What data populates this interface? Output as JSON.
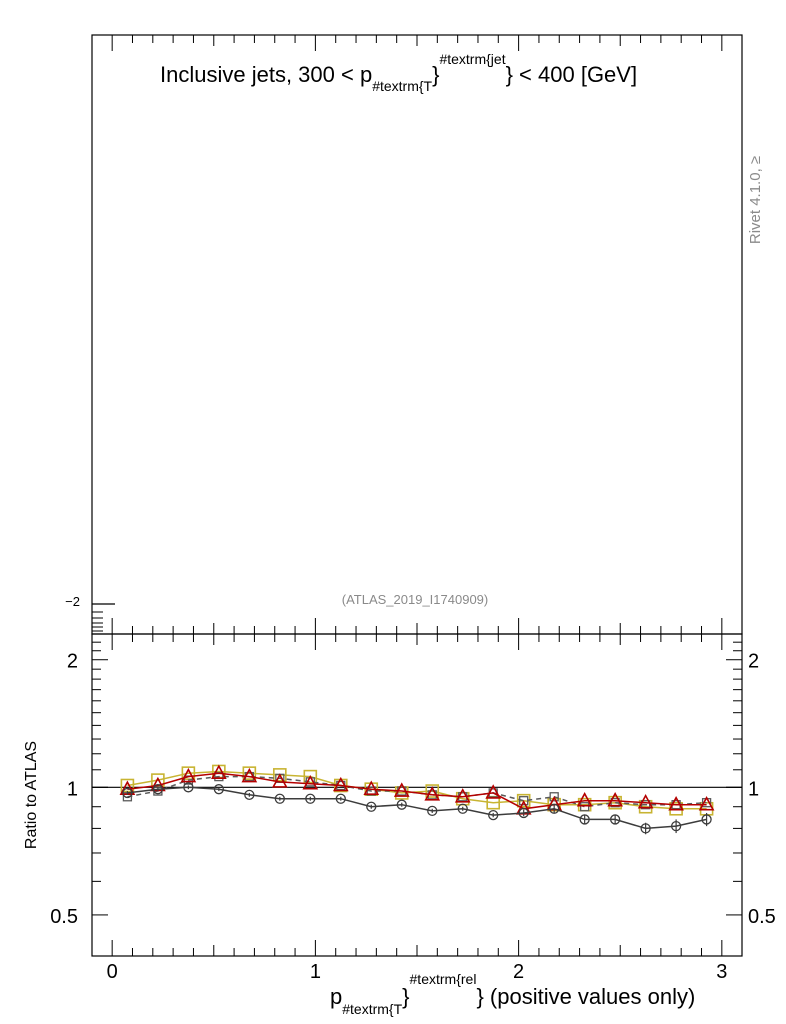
{
  "upper_panel": {
    "title_main": "Inclusive jets, 300 < p",
    "title_sub": "#textrm{T",
    "title_sup": "#textrm{jet",
    "title_tail": "} < 400 [GeV]",
    "ytick_label": "−2",
    "watermark": "(ATLAS_2019_I1740909)",
    "side_label": "Rivet 4.1.0, ≥"
  },
  "chart_data": {
    "type": "line",
    "xlabel_main": "p",
    "xlabel_sub": "#textrm{T",
    "xlabel_sup": "#textrm{rel",
    "xlabel_tail": "} (positive values only)",
    "ylabel": "Ratio to ATLAS",
    "xlim": [
      -0.05,
      3.05
    ],
    "ylim": [
      0.4,
      2.3
    ],
    "yscale": "log",
    "xticks": [
      0,
      1,
      2,
      3
    ],
    "xtick_labels": [
      "0",
      "1",
      "2",
      "3"
    ],
    "yticks": [
      0.5,
      1,
      2
    ],
    "ytick_labels": [
      "0.5",
      "1",
      "2"
    ],
    "reference_line": 1,
    "x": [
      0.075,
      0.225,
      0.375,
      0.525,
      0.675,
      0.825,
      0.975,
      1.125,
      1.275,
      1.425,
      1.575,
      1.725,
      1.875,
      2.025,
      2.175,
      2.325,
      2.475,
      2.625,
      2.775,
      2.925
    ],
    "series": [
      {
        "color": "#c8b432",
        "line_style": "solid",
        "marker": "square-large",
        "values": [
          1.01,
          1.04,
          1.08,
          1.09,
          1.08,
          1.07,
          1.06,
          1.01,
          0.99,
          0.97,
          0.98,
          0.94,
          0.92,
          0.93,
          0.91,
          0.91,
          0.92,
          0.9,
          0.89,
          0.89
        ]
      },
      {
        "color": "#5a5a5a",
        "line_style": "dashed",
        "marker": "square-small",
        "values": [
          0.95,
          0.98,
          1.04,
          1.06,
          1.06,
          1.05,
          1.03,
          1.01,
          0.98,
          0.98,
          0.96,
          0.95,
          0.97,
          0.93,
          0.95,
          0.9,
          0.92,
          0.91,
          0.91,
          0.92
        ]
      },
      {
        "color": "#b40000",
        "line_style": "solid",
        "marker": "triangle",
        "values": [
          0.99,
          1.01,
          1.06,
          1.08,
          1.06,
          1.03,
          1.02,
          1.01,
          0.99,
          0.98,
          0.96,
          0.95,
          0.97,
          0.89,
          0.91,
          0.93,
          0.93,
          0.92,
          0.91,
          0.91
        ]
      },
      {
        "color": "#3c3c3c",
        "line_style": "solid",
        "marker": "circle",
        "values": [
          0.97,
          0.99,
          1.0,
          0.99,
          0.96,
          0.94,
          0.94,
          0.94,
          0.9,
          0.91,
          0.88,
          0.89,
          0.86,
          0.87,
          0.89,
          0.84,
          0.84,
          0.8,
          0.81,
          0.84
        ],
        "errors": [
          0.01,
          0.01,
          0.01,
          0.01,
          0.01,
          0.01,
          0.01,
          0.01,
          0.01,
          0.01,
          0.01,
          0.01,
          0.01,
          0.015,
          0.02,
          0.02,
          0.02,
          0.025,
          0.03,
          0.03
        ]
      }
    ]
  }
}
